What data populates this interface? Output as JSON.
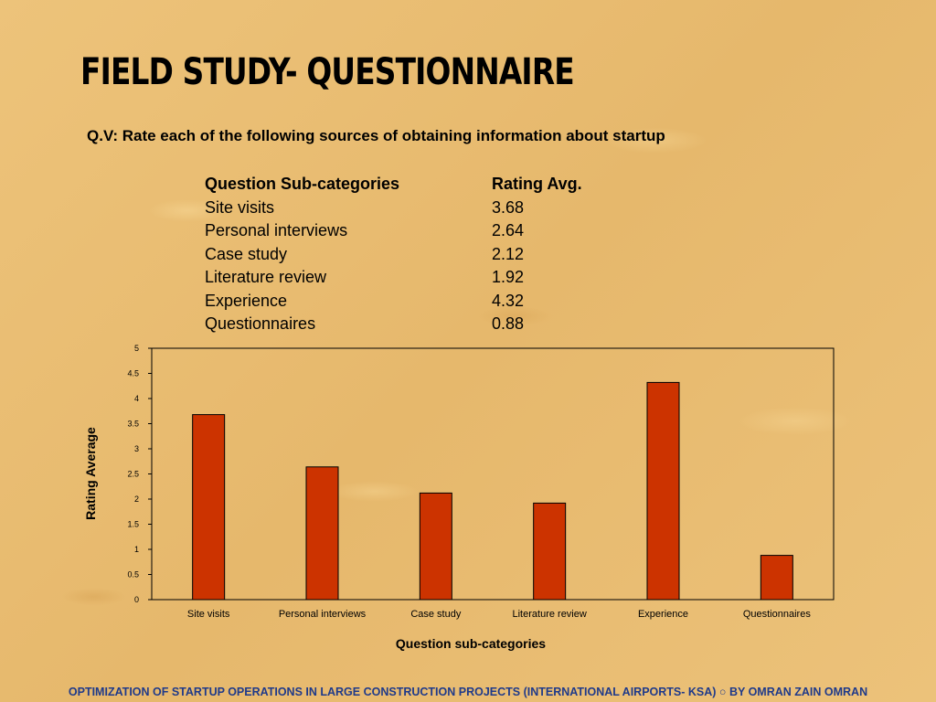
{
  "slide": {
    "title": "FIELD STUDY- QUESTIONNAIRE",
    "question": "Q.V: Rate each of the following sources of obtaining information about startup",
    "footer": "OPTIMIZATION OF STARTUP OPERATIONS IN LARGE CONSTRUCTION  PROJECTS (INTERNATIONAL AIRPORTS- KSA) ○ BY OMRAN ZAIN OMRAN"
  },
  "table": {
    "headers": [
      "Question Sub-categories",
      "Rating Avg."
    ],
    "rows": [
      [
        "Site visits",
        "3.68"
      ],
      [
        "Personal interviews",
        "2.64"
      ],
      [
        "Case study",
        "2.12"
      ],
      [
        "Literature review",
        "1.92"
      ],
      [
        "Experience",
        "4.32"
      ],
      [
        "Questionnaires",
        "0.88"
      ]
    ]
  },
  "colors": {
    "bar": "#cc3300",
    "footer_text": "#1f3a8a"
  },
  "chart_data": {
    "type": "bar",
    "categories": [
      "Site visits",
      "Personal interviews",
      "Case study",
      "Literature review",
      "Experience",
      "Questionnaires"
    ],
    "values": [
      3.68,
      2.64,
      2.12,
      1.92,
      4.32,
      0.88
    ],
    "xlabel": "Question sub-categories",
    "ylabel": "Rating Average",
    "ylim": [
      0,
      5
    ],
    "yticks": [
      "0",
      "0.5",
      "1",
      "1.5",
      "2",
      "2.5",
      "3",
      "3.5",
      "4",
      "4.5",
      "5"
    ],
    "grid": false,
    "legend": "none"
  }
}
